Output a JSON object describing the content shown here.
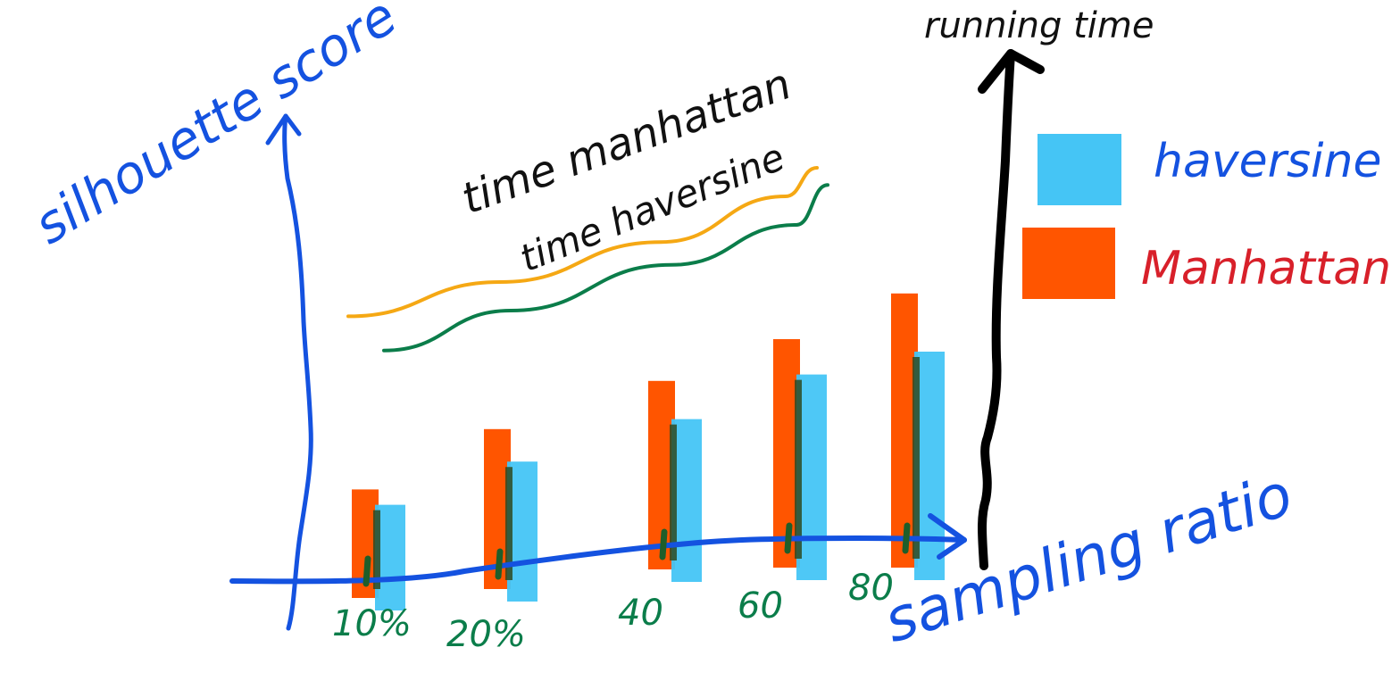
{
  "chart_data": {
    "type": "bar",
    "categories": [
      "10%",
      "20%",
      "40",
      "60",
      "80"
    ],
    "series": [
      {
        "name": "Manhattan",
        "values": [
          1.9,
          2.8,
          3.3,
          4.0,
          4.8
        ],
        "color": "#ff5500"
      },
      {
        "name": "haversine",
        "values": [
          1.85,
          2.45,
          2.85,
          3.6,
          4.0
        ],
        "color": "#45c5f5"
      }
    ],
    "lines": [
      {
        "name": "time manhattan",
        "values": [
          5.4,
          6.0,
          6.7,
          7.5,
          8.0
        ],
        "color": "#f5a814"
      },
      {
        "name": "time haversine",
        "values": [
          4.8,
          5.5,
          6.3,
          7.0,
          7.7
        ],
        "color": "#0b7d4a"
      }
    ],
    "xlabel": "sampling ratio",
    "ylabel": "silhouette score",
    "y2label": "running time",
    "ylim": [
      0,
      10
    ],
    "legend": {
      "placement": "right"
    },
    "grid": false
  }
}
